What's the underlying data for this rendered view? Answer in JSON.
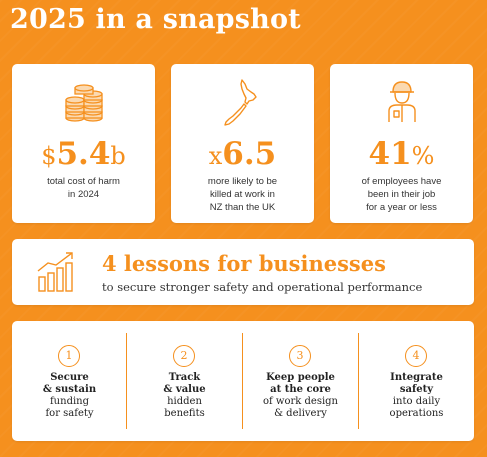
{
  "title": "2025 in a snapshot",
  "colors": {
    "accent": "#f5901e",
    "background": "#f5901e",
    "card": "#ffffff"
  },
  "stats": [
    {
      "icon": "coins-icon",
      "prefix": "$",
      "value": "5.4",
      "suffix": "b",
      "description": "total cost of harm\nin 2024"
    },
    {
      "icon": "new-zealand-map-icon",
      "prefix": "x",
      "value": "6.5",
      "suffix": "",
      "description": "more likely to be\nkilled at work in\nNZ than the UK"
    },
    {
      "icon": "worker-icon",
      "prefix": "",
      "value": "41",
      "suffix": "%",
      "description": "of employees have\nbeen in their job\nfor a year or less"
    }
  ],
  "lessons_header": {
    "icon": "growth-chart-icon",
    "heading": "4 lessons for businesses",
    "subheading": "to secure stronger safety and operational performance"
  },
  "lessons": [
    {
      "number": "1",
      "bold": [
        "Secure",
        "& sustain"
      ],
      "normal": [
        "funding",
        "for safety"
      ]
    },
    {
      "number": "2",
      "bold": [
        "Track",
        "& value"
      ],
      "normal": [
        "hidden",
        "benefits"
      ]
    },
    {
      "number": "3",
      "bold": [
        "Keep people",
        "at the core"
      ],
      "normal": [
        "of work design",
        "& delivery"
      ]
    },
    {
      "number": "4",
      "bold": [
        "Integrate",
        "safety"
      ],
      "normal": [
        "into daily",
        "operations"
      ]
    }
  ]
}
